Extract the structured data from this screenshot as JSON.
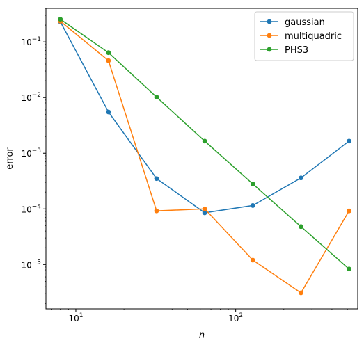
{
  "chart_data": {
    "type": "line",
    "title": "",
    "xlabel": "n",
    "ylabel": "error",
    "xscale": "log",
    "yscale": "log",
    "xlim": [
      6.5,
      580
    ],
    "ylim": [
      1.6e-06,
      0.4
    ],
    "grid": false,
    "legend_position": "top-right",
    "x": [
      8,
      16,
      32,
      64,
      128,
      256,
      512
    ],
    "xticks": [
      {
        "value": 10,
        "base": "10",
        "exp": "1"
      },
      {
        "value": 100,
        "base": "10",
        "exp": "2"
      }
    ],
    "yticks": [
      {
        "value": 0.1,
        "base": "10",
        "exp": "−1"
      },
      {
        "value": 0.01,
        "base": "10",
        "exp": "−2"
      },
      {
        "value": 0.001,
        "base": "10",
        "exp": "−3"
      },
      {
        "value": 0.0001,
        "base": "10",
        "exp": "−4"
      },
      {
        "value": 1e-05,
        "base": "10",
        "exp": "−5"
      }
    ],
    "series": [
      {
        "name": "gaussian",
        "color": "#1f77b4",
        "values": [
          0.23,
          0.0055,
          0.00035,
          8.5e-05,
          0.000115,
          0.00036,
          0.00165
        ]
      },
      {
        "name": "multiquadric",
        "color": "#ff7f0e",
        "values": [
          0.235,
          0.046,
          9.2e-05,
          0.0001,
          1.2e-05,
          3.1e-06,
          9.2e-05
        ]
      },
      {
        "name": "PHS3",
        "color": "#2ca02c",
        "values": [
          0.255,
          0.064,
          0.0102,
          0.00165,
          0.00028,
          4.8e-05,
          8.3e-06
        ]
      }
    ]
  }
}
